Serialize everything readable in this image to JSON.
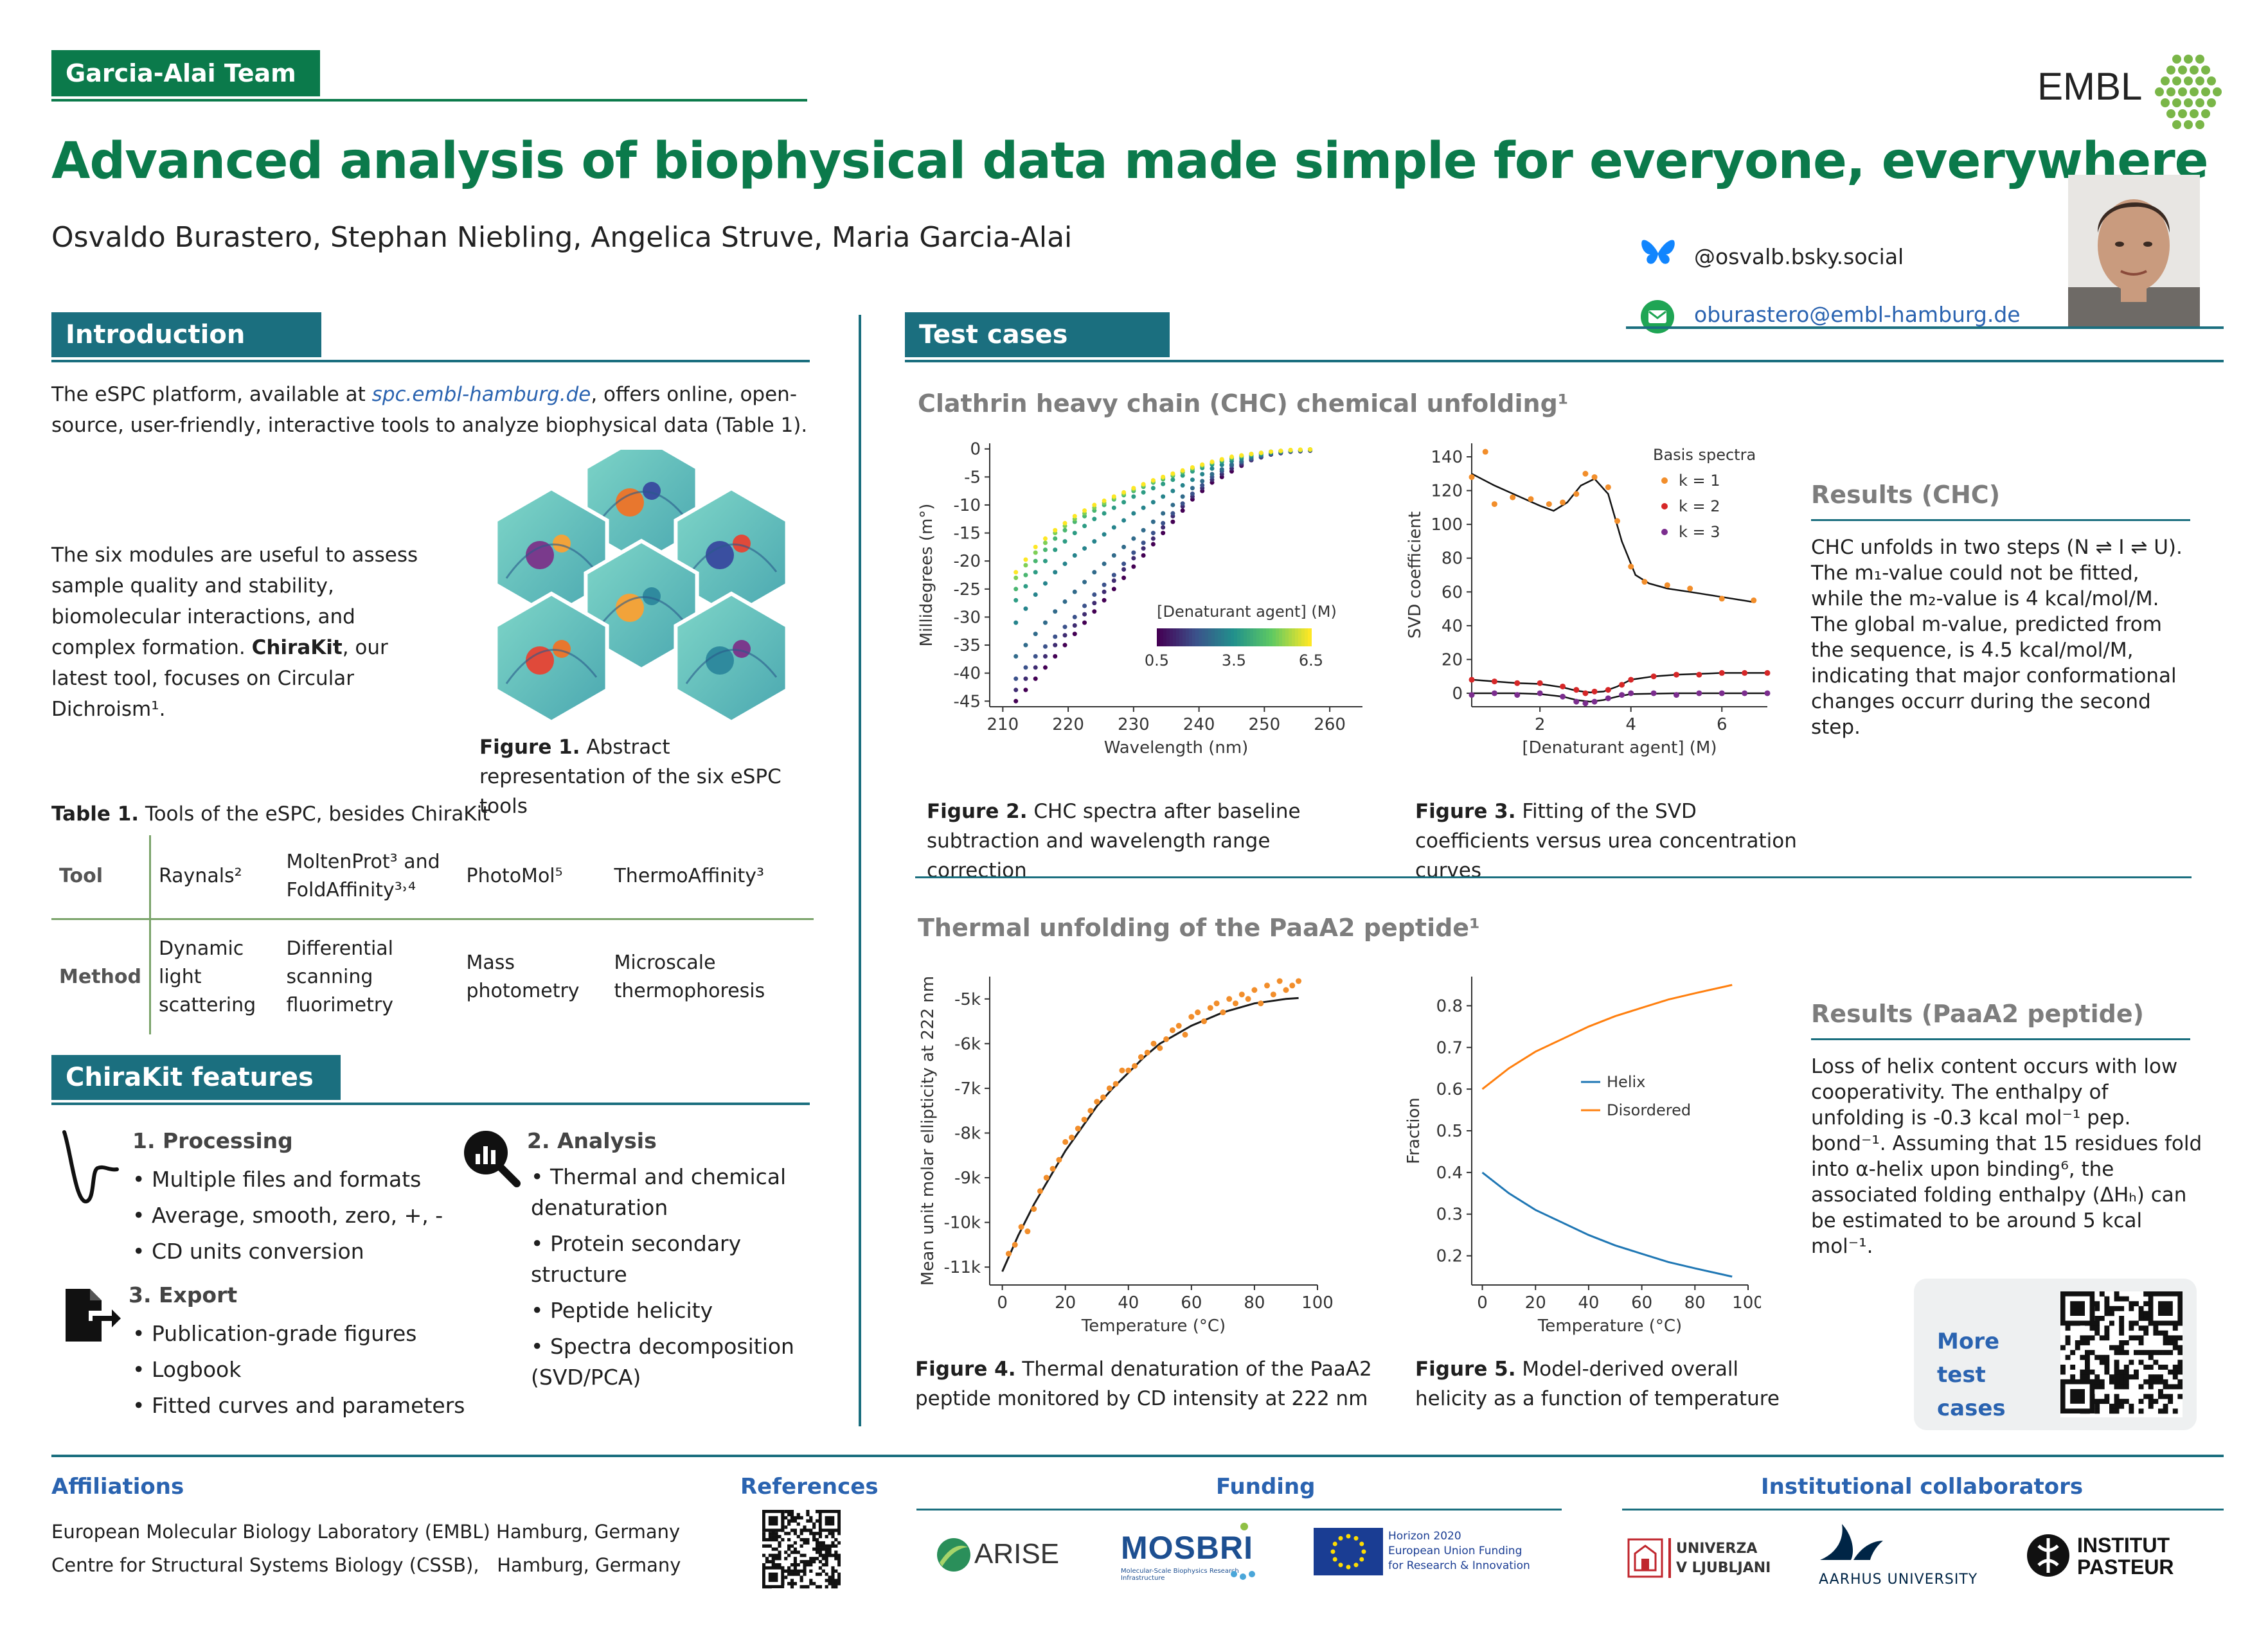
{
  "header": {
    "team_tag": "Garcia-Alai Team",
    "org_logo": "EMBL",
    "title": "Advanced analysis of biophysical data made simple for everyone, everywhere",
    "authors": "Osvaldo Burastero, Stephan Niebling, Angelica Struve, Maria Garcia-Alai",
    "bluesky": "@osvalb.bsky.social",
    "email": "oburastero@embl-hamburg.de",
    "icons": {
      "social": "butterfly-icon",
      "mail": "mail-icon"
    }
  },
  "introduction": {
    "heading": "Introduction",
    "p1_pre": "The eSPC platform, available at ",
    "p1_link": "spc.embl-hamburg.de",
    "p1_post": ", offers online, open-source, user-friendly, interactive tools to analyze biophysical data (Table 1).",
    "p2_pre": "The six modules are useful to assess sample quality and stability, biomolecular interactions, and complex formation. ",
    "p2_bold": "ChiraKit",
    "p2_post": ", our latest tool, focuses on Circular Dichroism¹.",
    "fig1_label": "Figure 1.",
    "fig1_text": " Abstract representation of the six eSPC tools",
    "table_caption_label": "Table 1.",
    "table_caption_text": " Tools of the eSPC, besides ChiraKit",
    "table": {
      "row1": [
        "Tool",
        "Raynals²",
        "MoltenProt³ and FoldAffinity³˒⁴",
        "PhotoMol⁵",
        "ThermoAffinity³"
      ],
      "row2": [
        "Method",
        "Dynamic light scattering",
        "Differential scanning fluorimetry",
        "Mass photometry",
        "Microscale thermophoresis"
      ]
    }
  },
  "features": {
    "heading": "ChiraKit features",
    "processing": {
      "title": "1. Processing",
      "items": [
        "Multiple files and formats",
        "Average, smooth, zero, +, -",
        "CD units conversion"
      ]
    },
    "analysis": {
      "title": "2. Analysis",
      "items": [
        "Thermal and chemical denaturation",
        "Protein secondary structure",
        "Peptide helicity",
        "Spectra decomposition (SVD/PCA)"
      ]
    },
    "export": {
      "title": "3. Export",
      "items": [
        "Publication-grade figures",
        "Logbook",
        "Fitted curves and parameters"
      ]
    },
    "icons": {
      "processing": "spectrum-curve-icon",
      "analysis": "magnifier-chart-icon",
      "export": "file-export-icon"
    }
  },
  "test_cases": {
    "heading": "Test cases",
    "chc_title": "Clathrin heavy chain (CHC) chemical unfolding¹",
    "fig2_label": "Figure 2.",
    "fig2_text": " CHC spectra after baseline subtraction and wavelength range correction",
    "fig3_label": "Figure 3.",
    "fig3_text": " Fitting of the SVD coefficients versus urea concentration curves",
    "results_chc_title": "Results (CHC)",
    "results_chc_text": "CHC unfolds in two steps (N ⇌ I ⇌ U). The m₁-value could not be fitted, while the m₂-value is 4 kcal/mol/M. The global m-value, predicted from the sequence, is 4.5 kcal/mol/M, indicating that major conformational changes occurr during the second step.",
    "paa_title": "Thermal unfolding of the PaaA2 peptide¹",
    "fig4_label": "Figure 4.",
    "fig4_text": " Thermal denaturation of the PaaA2 peptide monitored by CD intensity at 222 nm",
    "fig5_label": "Figure 5.",
    "fig5_text": " Model-derived overall helicity as a function of temperature",
    "results_paa_title": "Results (PaaA2 peptide)",
    "results_paa_text": "Loss of helix content occurs with low cooperativity. The enthalpy of unfolding is -0.3 kcal mol⁻¹ pep. bond⁻¹. Assuming that 15 residues fold into α-helix upon binding⁶, the associated folding enthalpy (ΔHₕ) can be estimated to be around 5 kcal mol⁻¹.",
    "more_cases": "More test cases"
  },
  "chart_data": [
    {
      "type": "scatter",
      "id": "fig2",
      "xlabel": "Wavelength (nm)",
      "ylabel": "Millidegrees (m°)",
      "xlim": [
        208,
        265
      ],
      "ylim": [
        -46,
        1
      ],
      "xticks": [
        210,
        220,
        230,
        240,
        250,
        260
      ],
      "yticks": [
        0,
        -5,
        -10,
        -15,
        -20,
        -25,
        -30,
        -35,
        -40,
        -45
      ],
      "colorbar_label": "[Denaturant agent] (M)",
      "colorbar_ticks": [
        0.5,
        3.5,
        6.5
      ],
      "colorbar_range": [
        0.5,
        6.5
      ],
      "colors": [
        "#440154",
        "#3b528b",
        "#21918c",
        "#5ec962",
        "#fde725"
      ],
      "series": [
        {
          "c": 0.5,
          "x": [
            212,
            215,
            218,
            221,
            224,
            227,
            230,
            233,
            236,
            239,
            242,
            245,
            248,
            251,
            254,
            257
          ],
          "y": [
            -45,
            -41,
            -37,
            -33,
            -29,
            -25,
            -21,
            -17,
            -13,
            -9,
            -6,
            -4,
            -2,
            -1,
            -0.5,
            -0.3
          ]
        },
        {
          "c": 1.3,
          "x": [
            212,
            215,
            218,
            221,
            224,
            227,
            230,
            233,
            236,
            239,
            242,
            245,
            248,
            251,
            254,
            257
          ],
          "y": [
            -43,
            -39,
            -35,
            -31.5,
            -27.5,
            -23.5,
            -19.5,
            -16,
            -12,
            -8.5,
            -5.5,
            -3.5,
            -2,
            -1,
            -0.5,
            -0.3
          ]
        },
        {
          "c": 2.0,
          "x": [
            212,
            215,
            218,
            221,
            224,
            227,
            230,
            233,
            236,
            239,
            242,
            245,
            248,
            251,
            254,
            257
          ],
          "y": [
            -41,
            -37,
            -33.5,
            -30,
            -26,
            -22.5,
            -18.5,
            -15,
            -11.5,
            -8,
            -5,
            -3,
            -1.8,
            -0.9,
            -0.4,
            -0.2
          ]
        },
        {
          "c": 2.6,
          "x": [
            212,
            215,
            218,
            221,
            224,
            227,
            230,
            233,
            236,
            239,
            242,
            245,
            248,
            251,
            254,
            257
          ],
          "y": [
            -37,
            -33,
            -29,
            -25.5,
            -22,
            -19,
            -16,
            -13,
            -10,
            -7,
            -4.5,
            -2.8,
            -1.6,
            -0.8,
            -0.4,
            -0.2
          ]
        },
        {
          "c": 3.2,
          "x": [
            212,
            215,
            218,
            221,
            224,
            227,
            230,
            233,
            236,
            239,
            242,
            245,
            248,
            251,
            254,
            257
          ],
          "y": [
            -31,
            -26,
            -22,
            -19,
            -16.5,
            -14,
            -11.5,
            -9.5,
            -7.5,
            -5.5,
            -3.5,
            -2.2,
            -1.3,
            -0.7,
            -0.3,
            -0.2
          ]
        },
        {
          "c": 3.8,
          "x": [
            212,
            215,
            218,
            221,
            224,
            227,
            230,
            233,
            236,
            239,
            242,
            245,
            248,
            251,
            254,
            257
          ],
          "y": [
            -27,
            -22,
            -18,
            -15,
            -12.5,
            -10.5,
            -8.5,
            -7,
            -5.5,
            -4,
            -2.8,
            -1.8,
            -1.1,
            -0.6,
            -0.3,
            -0.1
          ]
        },
        {
          "c": 4.5,
          "x": [
            212,
            215,
            218,
            221,
            224,
            227,
            230,
            233,
            236,
            239,
            242,
            245,
            248,
            251,
            254,
            257
          ],
          "y": [
            -25,
            -20,
            -16,
            -13,
            -11,
            -9,
            -7.5,
            -6,
            -4.8,
            -3.6,
            -2.5,
            -1.6,
            -1,
            -0.5,
            -0.3,
            -0.1
          ]
        },
        {
          "c": 5.3,
          "x": [
            212,
            215,
            218,
            221,
            224,
            227,
            230,
            233,
            236,
            239,
            242,
            245,
            248,
            251,
            254,
            257
          ],
          "y": [
            -23,
            -18.5,
            -15,
            -12.5,
            -10.5,
            -8.8,
            -7.2,
            -5.8,
            -4.6,
            -3.4,
            -2.4,
            -1.5,
            -0.9,
            -0.5,
            -0.2,
            -0.1
          ]
        },
        {
          "c": 6.5,
          "x": [
            212,
            215,
            218,
            221,
            224,
            227,
            230,
            233,
            236,
            239,
            242,
            245,
            248,
            251,
            254,
            257
          ],
          "y": [
            -22,
            -17.5,
            -14.5,
            -12,
            -10,
            -8.5,
            -7,
            -5.6,
            -4.4,
            -3.3,
            -2.3,
            -1.4,
            -0.9,
            -0.5,
            -0.2,
            -0.1
          ]
        }
      ]
    },
    {
      "type": "scatter",
      "id": "fig3",
      "xlabel": "[Denaturant agent] (M)",
      "ylabel": "SVD coefficient",
      "xlim": [
        0.5,
        7
      ],
      "ylim": [
        -8,
        148
      ],
      "xticks": [
        2,
        4,
        6
      ],
      "yticks": [
        0,
        20,
        40,
        60,
        80,
        100,
        120,
        140
      ],
      "legend_title": "Basis spectra",
      "legend_position": "top-right",
      "colors": [
        "#f28e2b",
        "#d62728",
        "#7b2d8e"
      ],
      "series": [
        {
          "name": "k = 1",
          "x": [
            0.5,
            0.8,
            1.0,
            1.4,
            1.8,
            2.2,
            2.5,
            2.8,
            3.0,
            3.2,
            3.5,
            3.7,
            4.0,
            4.3,
            4.8,
            5.3,
            6.0,
            6.7
          ],
          "y": [
            128,
            143,
            112,
            116,
            115,
            112,
            113,
            118,
            130,
            128,
            122,
            102,
            75,
            66,
            64,
            62,
            56,
            55
          ]
        },
        {
          "name": "k = 2",
          "x": [
            0.5,
            1.0,
            1.5,
            2.0,
            2.5,
            2.8,
            3.0,
            3.2,
            3.5,
            3.8,
            4.0,
            4.5,
            5.0,
            5.5,
            6.0,
            6.5,
            7.0
          ],
          "y": [
            8,
            7,
            6,
            6,
            4,
            2,
            0,
            1,
            2,
            5,
            8,
            10,
            11,
            11,
            12,
            12,
            12
          ]
        },
        {
          "name": "k = 3",
          "x": [
            0.5,
            1.0,
            1.5,
            2.0,
            2.5,
            2.8,
            3.0,
            3.2,
            3.5,
            3.8,
            4.0,
            4.5,
            5.0,
            5.5,
            6.0,
            6.5,
            7.0
          ],
          "y": [
            -1,
            0,
            -1,
            0,
            -2,
            -5,
            -6,
            -5,
            -3,
            -1,
            0,
            0,
            -1,
            0,
            0,
            0,
            0
          ]
        }
      ],
      "fit_k1": {
        "x": [
          0.5,
          1,
          1.5,
          2,
          2.3,
          2.6,
          2.9,
          3.2,
          3.5,
          3.8,
          4.1,
          4.4,
          4.8,
          5.3,
          6,
          6.7
        ],
        "y": [
          130,
          123,
          117,
          111,
          108,
          113,
          123,
          127,
          118,
          90,
          70,
          65,
          62,
          60,
          57,
          54
        ]
      },
      "fit_k2": {
        "x": [
          0.5,
          1,
          1.5,
          2,
          2.5,
          2.8,
          3.1,
          3.4,
          3.7,
          4,
          4.5,
          5,
          6,
          7
        ],
        "y": [
          8,
          7,
          6,
          5.5,
          3.5,
          1.5,
          0.5,
          1,
          4,
          8,
          10,
          11,
          12,
          12
        ]
      },
      "fit_k3": {
        "x": [
          0.5,
          1,
          1.5,
          2,
          2.5,
          2.8,
          3.1,
          3.4,
          3.7,
          4,
          5,
          6,
          7
        ],
        "y": [
          0,
          0,
          0,
          -0.5,
          -2,
          -4,
          -5,
          -4,
          -2,
          -0.5,
          0,
          0,
          0
        ]
      }
    },
    {
      "type": "scatter",
      "id": "fig4",
      "xlabel": "Temperature (°C)",
      "ylabel": "Mean unit molar ellipticity at 222 nm",
      "xlim": [
        -4,
        100
      ],
      "ylim": [
        -11400,
        -4500
      ],
      "xticks": [
        0,
        20,
        40,
        60,
        80,
        100
      ],
      "yticks": [
        -5000,
        -6000,
        -7000,
        -8000,
        -9000,
        -10000,
        -11000
      ],
      "ytick_labels": [
        "-5k",
        "-6k",
        "-7k",
        "-8k",
        "-9k",
        "-10k",
        "-11k"
      ],
      "colors": [
        "#f28e2b",
        "#1a1a1a"
      ],
      "points": {
        "x": [
          2,
          4,
          6,
          8,
          10,
          12,
          14,
          16,
          18,
          20,
          22,
          24,
          26,
          28,
          30,
          32,
          34,
          36,
          38,
          40,
          42,
          44,
          46,
          48,
          50,
          52,
          54,
          56,
          58,
          60,
          62,
          64,
          66,
          68,
          70,
          72,
          74,
          76,
          78,
          80,
          82,
          84,
          86,
          88,
          90,
          92,
          94
        ],
        "y": [
          -10700,
          -10500,
          -10100,
          -10200,
          -9700,
          -9300,
          -9000,
          -8800,
          -8600,
          -8200,
          -8100,
          -7900,
          -7700,
          -7500,
          -7300,
          -7200,
          -7000,
          -6900,
          -6600,
          -6600,
          -6500,
          -6300,
          -6200,
          -6000,
          -6100,
          -5900,
          -5700,
          -5600,
          -5800,
          -5400,
          -5300,
          -5500,
          -5200,
          -5100,
          -5300,
          -5000,
          -5100,
          -4900,
          -5000,
          -4800,
          -5100,
          -4700,
          -4900,
          -4600,
          -4800,
          -4700,
          -4600
        ]
      },
      "fit": {
        "x": [
          0,
          5,
          10,
          15,
          20,
          25,
          30,
          35,
          40,
          45,
          50,
          55,
          60,
          65,
          70,
          75,
          80,
          85,
          90,
          94
        ],
        "y": [
          -11100,
          -10300,
          -9600,
          -9000,
          -8400,
          -7900,
          -7400,
          -7000,
          -6650,
          -6300,
          -6000,
          -5800,
          -5600,
          -5450,
          -5300,
          -5200,
          -5100,
          -5050,
          -5000,
          -4980
        ]
      }
    },
    {
      "type": "line",
      "id": "fig5",
      "xlabel": "Temperature (°C)",
      "ylabel": "Fraction",
      "xlim": [
        -4,
        100
      ],
      "ylim": [
        0.13,
        0.87
      ],
      "xticks": [
        0,
        20,
        40,
        60,
        80,
        100
      ],
      "yticks": [
        0.2,
        0.3,
        0.4,
        0.5,
        0.6,
        0.7,
        0.8
      ],
      "legend_position": "center",
      "series": [
        {
          "name": "Helix",
          "color": "#1f77b4",
          "x": [
            0,
            10,
            20,
            30,
            40,
            50,
            60,
            70,
            80,
            94
          ],
          "y": [
            0.4,
            0.35,
            0.31,
            0.28,
            0.25,
            0.225,
            0.205,
            0.185,
            0.17,
            0.15
          ]
        },
        {
          "name": "Disordered",
          "color": "#ff7f0e",
          "x": [
            0,
            10,
            20,
            30,
            40,
            50,
            60,
            70,
            80,
            94
          ],
          "y": [
            0.6,
            0.65,
            0.69,
            0.72,
            0.75,
            0.775,
            0.795,
            0.815,
            0.83,
            0.85
          ]
        }
      ]
    }
  ],
  "footer": {
    "affiliations_title": "Affiliations",
    "affiliation1": "European Molecular Biology Laboratory (EMBL) Hamburg, Germany",
    "affiliation2": "Centre for Structural Systems Biology (CSSB),   Hamburg, Germany",
    "references_title": "References",
    "funding_title": "Funding",
    "funding_logos": {
      "arise": "ARISE",
      "mosbri": "MOSBRI",
      "mosbri_sub": "Molecular-Scale Biophysics Research Infrastructure",
      "eu_line1": "Horizon 2020",
      "eu_line2": "European Union Funding",
      "eu_line3": "for Research & Innovation"
    },
    "collab_title": "Institutional collaborators",
    "collab_logos": {
      "ljubljana_1": "UNIVERZA",
      "ljubljana_2": "V LJUBLJANI",
      "aarhus": "AARHUS UNIVERSITY",
      "pasteur_1": "INSTITUT",
      "pasteur_2": "PASTEUR"
    }
  }
}
